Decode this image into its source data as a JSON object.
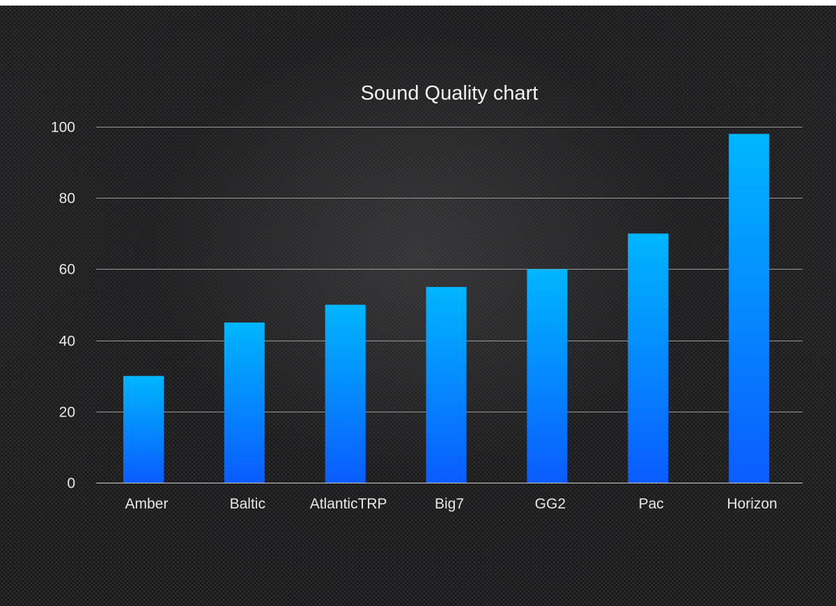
{
  "chart_data": {
    "type": "bar",
    "title": "Sound Quality chart",
    "categories": [
      "Amber",
      "Baltic",
      "AtlanticTRP",
      "Big7",
      "GG2",
      "Pac",
      "Horizon"
    ],
    "series": [
      {
        "values": [
          30,
          45,
          50,
          55,
          60,
          70,
          98
        ]
      }
    ],
    "xlabel": "",
    "ylabel": "",
    "ylim": [
      0,
      100
    ],
    "yticks": [
      0,
      20,
      40,
      60,
      80,
      100
    ],
    "grid": true,
    "legend": "none",
    "bar_color_top": "#00b6ff",
    "bar_color_bottom": "#0a5cff"
  }
}
